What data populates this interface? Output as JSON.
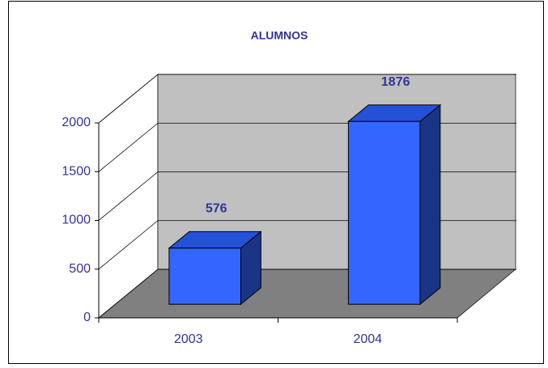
{
  "chart_data": {
    "type": "bar3d",
    "title": "ALUMNOS",
    "categories": [
      "2003",
      "2004"
    ],
    "values": [
      576,
      1876
    ],
    "color": "#3366ff",
    "ylim": [
      0,
      2000
    ],
    "yticks": [
      0,
      500,
      1000,
      1500,
      2000
    ],
    "grid": true
  }
}
